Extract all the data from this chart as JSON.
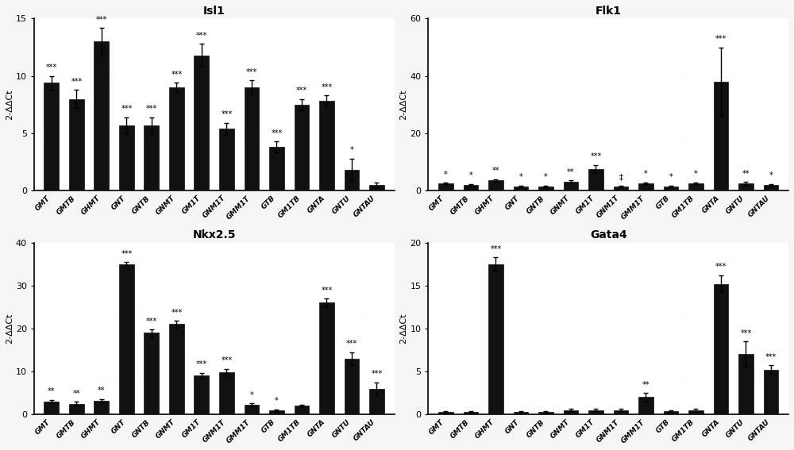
{
  "categories": [
    "GMT",
    "GMTB",
    "GHMT",
    "GNT",
    "GNTB",
    "GNMT",
    "GM1T",
    "GNM1T",
    "GMM1T",
    "GTB",
    "GM1TB",
    "GNTA",
    "GNTU",
    "GNTAU"
  ],
  "panels": [
    {
      "title": "Isl1",
      "ylabel": "2-ΔΔCt",
      "ylim": [
        0,
        15
      ],
      "yticks": [
        0,
        5,
        10,
        15
      ],
      "values": [
        9.4,
        8.0,
        13.0,
        5.7,
        5.7,
        9.0,
        11.8,
        5.4,
        9.0,
        3.8,
        7.5,
        7.8,
        1.8,
        0.5
      ],
      "errors": [
        0.6,
        0.8,
        1.2,
        0.7,
        0.7,
        0.4,
        1.0,
        0.5,
        0.6,
        0.5,
        0.5,
        0.5,
        1.0,
        0.2
      ],
      "sig": [
        "***",
        "***",
        "***",
        "***",
        "***",
        "***",
        "***",
        "***",
        "***",
        "***",
        "***",
        "***",
        "*",
        ""
      ]
    },
    {
      "title": "Flk1",
      "ylabel": "2-ΔΔCt",
      "ylim": [
        0,
        60
      ],
      "yticks": [
        0,
        20,
        40,
        60
      ],
      "values": [
        2.5,
        2.0,
        3.5,
        1.5,
        1.5,
        3.0,
        7.5,
        1.5,
        2.5,
        1.5,
        2.5,
        38.0,
        2.5,
        2.0
      ],
      "errors": [
        0.3,
        0.3,
        0.5,
        0.3,
        0.3,
        0.5,
        1.5,
        0.3,
        0.4,
        0.3,
        0.4,
        12.0,
        0.5,
        0.3
      ],
      "sig": [
        "*",
        "*",
        "**",
        "*",
        "*",
        "**",
        "***",
        "‡",
        "*",
        "*",
        "*",
        "***",
        "**",
        "*"
      ]
    },
    {
      "title": "Nkx2.5",
      "ylabel": "2-ΔΔCt",
      "ylim": [
        0,
        40
      ],
      "yticks": [
        0,
        10,
        20,
        30,
        40
      ],
      "values": [
        3.0,
        2.5,
        3.2,
        35.0,
        19.0,
        21.0,
        9.0,
        9.8,
        2.2,
        1.0,
        2.0,
        26.0,
        13.0,
        6.0
      ],
      "errors": [
        0.4,
        0.4,
        0.4,
        0.5,
        0.8,
        0.8,
        0.7,
        0.8,
        0.4,
        0.2,
        0.3,
        1.0,
        1.5,
        1.5
      ],
      "sig": [
        "**",
        "**",
        "**",
        "***",
        "***",
        "***",
        "***",
        "***",
        "*",
        "*",
        "",
        "***",
        "***",
        "***"
      ]
    },
    {
      "title": "Gata4",
      "ylabel": "2-ΔΔCt",
      "ylim": [
        0,
        20
      ],
      "yticks": [
        0,
        5,
        10,
        15,
        20
      ],
      "values": [
        0.3,
        0.3,
        17.5,
        0.3,
        0.3,
        0.5,
        0.5,
        0.5,
        2.0,
        0.4,
        0.5,
        15.2,
        7.0,
        5.2
      ],
      "errors": [
        0.1,
        0.1,
        0.8,
        0.1,
        0.1,
        0.15,
        0.15,
        0.15,
        0.5,
        0.1,
        0.15,
        1.0,
        1.5,
        0.5
      ],
      "sig": [
        "",
        "",
        "***",
        "",
        "",
        "",
        "",
        "",
        "**",
        "",
        "",
        "***",
        "***",
        "***"
      ]
    }
  ],
  "bar_color": "#111111",
  "background_color": "#ffffff",
  "dot_color": "#c8c8d8",
  "bar_width": 0.6,
  "title_fontsize": 10,
  "ylabel_fontsize": 8,
  "tick_fontsize": 8,
  "sig_fontsize": 7,
  "xtick_fontsize": 6.5
}
